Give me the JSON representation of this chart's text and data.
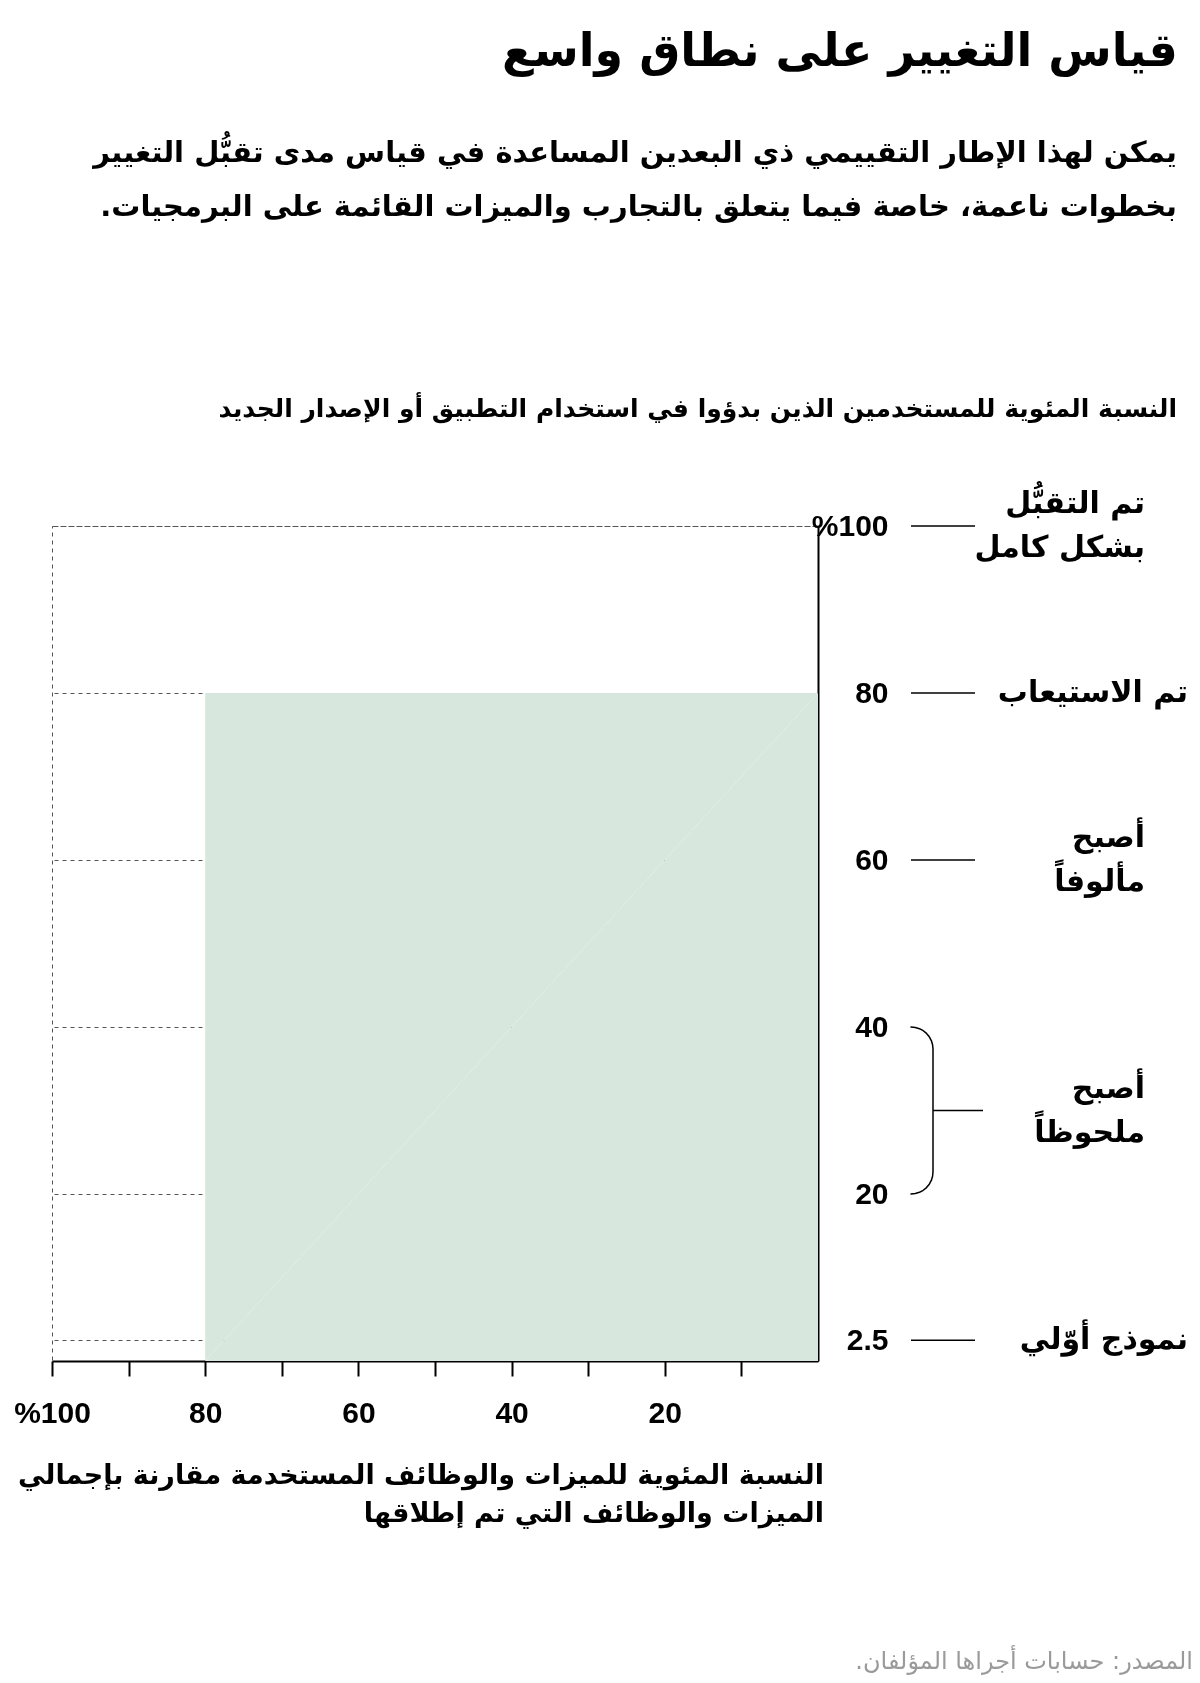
{
  "chart_data": {
    "type": "area",
    "title": "قياس التغيير على نطاق واسع",
    "subtitle": "يمكن لهذا الإطار التقييمي ذي البعدين المساعدة في قياس مدى تقبُّل التغيير بخطوات ناعمة، خاصة فيما يتعلق بالتجارب والميزات القائمة على البرمجيات.",
    "ylabel": "النسبة المئوية للمستخدمين الذين بدؤوا في استخدام التطبيق أو الإصدار الجديد",
    "xlabel": "النسبة المئوية للميزات والوظائف المستخدمة مقارنة بإجمالي الميزات والوظائف التي تم إطلاقها",
    "x": [
      0,
      80
    ],
    "series": [
      {
        "color": "#d8e7dd",
        "values": [
          80,
          80
        ]
      }
    ],
    "xlim": [
      100,
      0
    ],
    "xticks": [
      {
        "value": 100,
        "label": "%100"
      },
      {
        "value": 90,
        "label": null
      },
      80,
      {
        "value": 70,
        "label": null
      },
      60,
      {
        "value": 50,
        "label": null
      },
      40,
      {
        "value": 30,
        "label": null
      },
      20,
      {
        "value": 10,
        "label": null
      }
    ],
    "ylim": [
      0,
      100
    ],
    "yticks": [
      2.5,
      20,
      40,
      60,
      80,
      {
        "value": 100,
        "label": "%100"
      }
    ],
    "grid": "y",
    "annotations": [
      "تم التقبُّل\nبشكل كامل",
      "تم الاستيعاب",
      "أصبح\nمألوفاً",
      "أصبح\nملحوظاً",
      "نموذج أوّلي",
      "المصدر: حسابات أجراها المؤلفان."
    ]
  }
}
